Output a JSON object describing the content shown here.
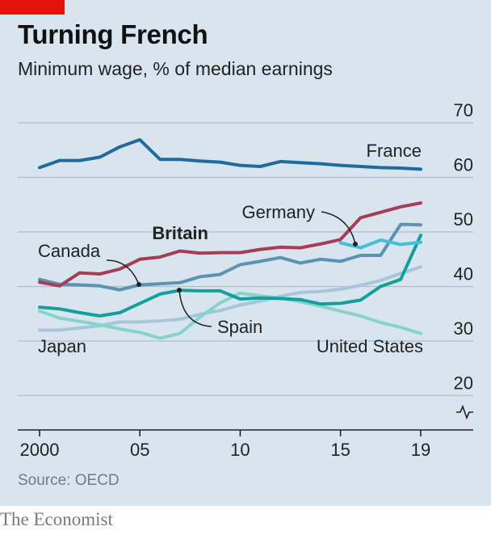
{
  "header": {
    "title": "Turning French",
    "subtitle": "Minimum wage, % of median earnings"
  },
  "footer": {
    "source": "Source: OECD",
    "brand": "The Economist"
  },
  "colors": {
    "background": "#d8e5ef",
    "accent": "#e3120b"
  },
  "chart_data": {
    "type": "line",
    "title": "Turning French",
    "subtitle": "Minimum wage, % of median earnings",
    "xlabel": "",
    "ylabel": "",
    "xlim": [
      2000,
      2019
    ],
    "ylim": [
      15,
      70
    ],
    "y_axis_break": true,
    "grid": true,
    "x_ticks": [
      2000,
      2005,
      2010,
      2015,
      2019
    ],
    "x_tick_labels": [
      "2000",
      "05",
      "10",
      "15",
      "19"
    ],
    "y_ticks": [
      20,
      30,
      40,
      50,
      60,
      70
    ],
    "y_tick_labels": [
      "20",
      "30",
      "40",
      "50",
      "60",
      "70"
    ],
    "series": [
      {
        "name": "France",
        "color": "#1f6b9b",
        "bold_label": false,
        "x": [
          2000,
          2001,
          2002,
          2003,
          2004,
          2005,
          2006,
          2007,
          2008,
          2009,
          2010,
          2011,
          2012,
          2013,
          2014,
          2015,
          2016,
          2017,
          2018,
          2019
        ],
        "y": [
          61.8,
          63.1,
          63.1,
          63.7,
          65.6,
          66.9,
          63.3,
          63.3,
          63.0,
          62.8,
          62.2,
          62.0,
          62.9,
          62.7,
          62.5,
          62.2,
          62.0,
          61.8,
          61.7,
          61.5
        ]
      },
      {
        "name": "Britain",
        "color": "#a63d54",
        "bold_label": true,
        "x": [
          2000,
          2001,
          2002,
          2003,
          2004,
          2005,
          2006,
          2007,
          2008,
          2009,
          2010,
          2011,
          2012,
          2013,
          2014,
          2015,
          2016,
          2017,
          2018,
          2019
        ],
        "y": [
          40.8,
          40.1,
          42.5,
          42.3,
          43.2,
          45.0,
          45.4,
          46.5,
          46.1,
          46.2,
          46.2,
          46.8,
          47.2,
          47.1,
          47.8,
          48.6,
          52.6,
          53.6,
          54.6,
          55.3
        ]
      },
      {
        "name": "Germany",
        "color": "#3fc1d6",
        "bold_label": false,
        "x": [
          2015,
          2016,
          2017,
          2018,
          2019
        ],
        "y": [
          48.0,
          47.1,
          48.5,
          47.7,
          48.1
        ]
      },
      {
        "name": "Canada",
        "color": "#5b93b3",
        "bold_label": false,
        "x": [
          2000,
          2001,
          2002,
          2003,
          2004,
          2005,
          2006,
          2007,
          2008,
          2009,
          2010,
          2011,
          2012,
          2013,
          2014,
          2015,
          2016,
          2017,
          2018,
          2019
        ],
        "y": [
          41.3,
          40.4,
          40.3,
          40.1,
          39.4,
          40.3,
          40.5,
          40.7,
          41.8,
          42.2,
          44.0,
          44.6,
          45.3,
          44.3,
          45.0,
          44.6,
          45.7,
          45.7,
          51.4,
          51.3
        ]
      },
      {
        "name": "Spain",
        "color": "#13a09b",
        "bold_label": false,
        "x": [
          2000,
          2001,
          2002,
          2003,
          2004,
          2005,
          2006,
          2007,
          2008,
          2009,
          2010,
          2011,
          2012,
          2013,
          2014,
          2015,
          2016,
          2017,
          2018,
          2019
        ],
        "y": [
          36.2,
          35.9,
          35.2,
          34.6,
          35.2,
          36.9,
          38.6,
          39.3,
          39.2,
          39.2,
          37.7,
          37.9,
          37.8,
          37.6,
          36.8,
          36.9,
          37.5,
          40.0,
          41.3,
          49.4
        ]
      },
      {
        "name": "United States",
        "color": "#85d4c9",
        "bold_label": false,
        "x": [
          2000,
          2001,
          2002,
          2003,
          2004,
          2005,
          2006,
          2007,
          2008,
          2009,
          2010,
          2011,
          2012,
          2013,
          2014,
          2015,
          2016,
          2017,
          2018,
          2019
        ],
        "y": [
          35.5,
          34.2,
          33.6,
          33.0,
          32.2,
          31.6,
          30.5,
          31.4,
          34.4,
          37.0,
          38.8,
          38.3,
          37.9,
          37.2,
          36.4,
          35.5,
          34.6,
          33.4,
          32.5,
          31.4
        ]
      },
      {
        "name": "Japan",
        "color": "#a7c6da",
        "bold_label": false,
        "x": [
          2000,
          2001,
          2002,
          2003,
          2004,
          2005,
          2006,
          2007,
          2008,
          2009,
          2010,
          2011,
          2012,
          2013,
          2014,
          2015,
          2016,
          2017,
          2018,
          2019
        ],
        "y": [
          32.0,
          32.0,
          32.4,
          32.8,
          33.5,
          33.5,
          33.7,
          34.0,
          34.9,
          35.6,
          36.6,
          37.3,
          38.2,
          38.9,
          39.1,
          39.5,
          40.2,
          41.1,
          42.4,
          43.6
        ]
      }
    ]
  }
}
